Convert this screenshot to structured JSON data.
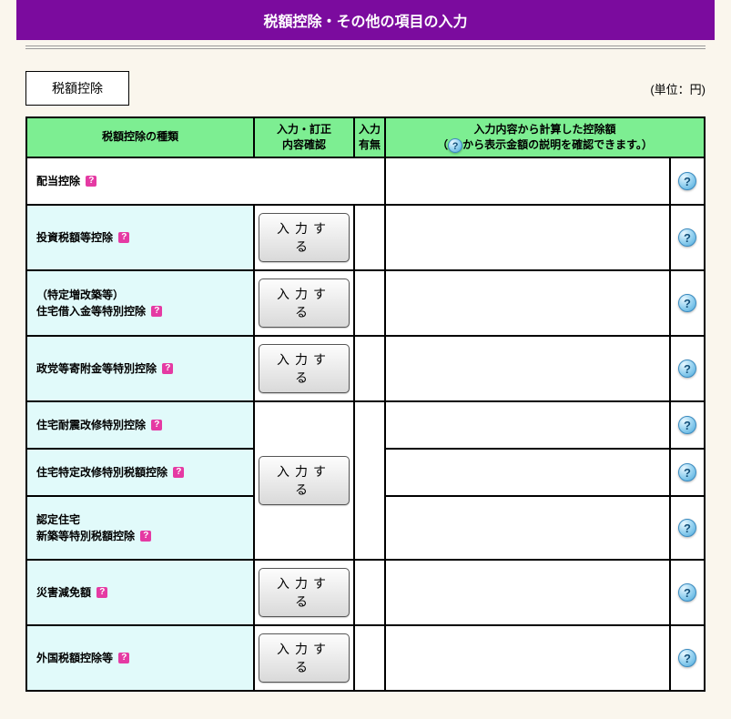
{
  "page_title": "税額控除・その他の項目の入力",
  "section_label": "税額控除",
  "unit_label": "(単位：円)",
  "headers": {
    "type": "税額控除の種類",
    "input_confirm_l1": "入力・訂正",
    "input_confirm_l2": "内容確認",
    "flag_l1": "入力",
    "flag_l2": "有無",
    "calc_l1": "入力内容から計算した控除額",
    "calc_l2_pre": "（",
    "calc_l2_post": "から表示金額の説明を確認できます。）"
  },
  "button_label": "入力する",
  "rows": {
    "r1": {
      "label": "配当控除"
    },
    "r2": {
      "label": "投資税額等控除"
    },
    "r3": {
      "label_l1": "（特定増改築等）",
      "label_l2": "住宅借入金等特別控除"
    },
    "r4": {
      "label": "政党等寄附金等特別控除"
    },
    "r5": {
      "label": "住宅耐震改修特別控除"
    },
    "r6": {
      "label": "住宅特定改修特別税額控除"
    },
    "r7": {
      "label_l1": "認定住宅",
      "label_l2": "新築等特別税額控除"
    },
    "r8": {
      "label": "災害減免額"
    },
    "r9": {
      "label": "外国税額控除等"
    }
  }
}
